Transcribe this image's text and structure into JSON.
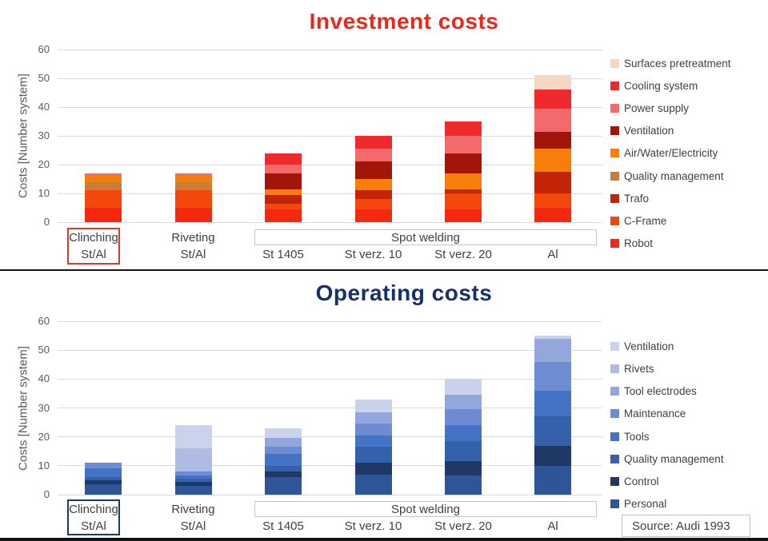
{
  "source": {
    "label": "Source: Audi 1993"
  },
  "chart_data": [
    {
      "type": "bar",
      "stacked": true,
      "title": "Investment costs",
      "title_color": "#ED2713",
      "ylabel": "Costs [Number system]",
      "ylim": [
        0,
        60
      ],
      "yticks": [
        0,
        10,
        20,
        30,
        40,
        50,
        60
      ],
      "grid": true,
      "legend_position": "right",
      "highlight_color": "#DC3A26",
      "group": {
        "label": "Spot welding",
        "from": 2,
        "to": 5
      },
      "categories": [
        {
          "name": "Clinching St/Al",
          "line1": "Clinching",
          "line2": "St/Al",
          "highlight": true
        },
        {
          "name": "Riveting St/Al",
          "line1": "Riveting",
          "line2": "St/Al",
          "highlight": false
        },
        {
          "name": "St 1405",
          "line1": "",
          "line2": "St 1405",
          "highlight": false
        },
        {
          "name": "St verz. 10",
          "line1": "",
          "line2": "St verz. 10",
          "highlight": false
        },
        {
          "name": "St verz. 20",
          "line1": "",
          "line2": "St verz. 20",
          "highlight": false
        },
        {
          "name": "Al",
          "line1": "",
          "line2": "Al",
          "highlight": false
        }
      ],
      "stack_order": "bottom-to-top",
      "series": [
        {
          "name": "Robot",
          "color": "#F4290F",
          "values": [
            5,
            5,
            4.5,
            4.5,
            4.5,
            5
          ]
        },
        {
          "name": "C-Frame",
          "color": "#F4470C",
          "values": [
            6,
            6,
            2,
            3.5,
            5.5,
            5
          ]
        },
        {
          "name": "Trafo",
          "color": "#C22405",
          "values": [
            0,
            0,
            3,
            3,
            1.5,
            7.5
          ]
        },
        {
          "name": "Quality management",
          "color": "#CB7C35",
          "values": [
            3,
            3,
            0,
            0,
            0,
            0
          ]
        },
        {
          "name": "Air/Water/Electricity",
          "color": "#F87E0B",
          "values": [
            2,
            2,
            2,
            4,
            5.5,
            8
          ]
        },
        {
          "name": "Ventilation",
          "color": "#A31508",
          "values": [
            0,
            0,
            5.5,
            6,
            7,
            6
          ]
        },
        {
          "name": "Power supply",
          "color": "#F4696C",
          "values": [
            1,
            1,
            3,
            4.5,
            6,
            8
          ]
        },
        {
          "name": "Cooling system",
          "color": "#EF2A2D",
          "values": [
            0,
            0,
            4,
            4.5,
            5,
            6.5
          ]
        },
        {
          "name": "Surfaces pretreatment",
          "color": "#F3D8C5",
          "values": [
            0,
            0,
            0,
            0,
            0,
            5
          ]
        }
      ],
      "totals": [
        17,
        17,
        24,
        30,
        35,
        51
      ]
    },
    {
      "type": "bar",
      "stacked": true,
      "title": "Operating costs",
      "title_color": "#17306B",
      "ylabel": "Costs [Number system]",
      "ylim": [
        0,
        60
      ],
      "yticks": [
        0,
        10,
        20,
        30,
        40,
        50,
        60
      ],
      "grid": true,
      "legend_position": "right",
      "highlight_color": "#1F3864",
      "group": {
        "label": "Spot welding",
        "from": 2,
        "to": 5
      },
      "categories": [
        {
          "name": "Clinching St/Al",
          "line1": "Clinching",
          "line2": "St/Al",
          "highlight": true
        },
        {
          "name": "Riveting St/Al",
          "line1": "Riveting",
          "line2": "St/Al",
          "highlight": false
        },
        {
          "name": "St 1405",
          "line1": "",
          "line2": "St 1405",
          "highlight": false
        },
        {
          "name": "St verz. 10",
          "line1": "",
          "line2": "St verz. 10",
          "highlight": false
        },
        {
          "name": "St verz. 20",
          "line1": "",
          "line2": "St verz. 20",
          "highlight": false
        },
        {
          "name": "Al",
          "line1": "",
          "line2": "Al",
          "highlight": false
        }
      ],
      "stack_order": "bottom-to-top",
      "series": [
        {
          "name": "Personal",
          "color": "#2E5597",
          "values": [
            3.5,
            3,
            6,
            7,
            6.5,
            10
          ]
        },
        {
          "name": "Control",
          "color": "#1F3864",
          "values": [
            1.5,
            1.5,
            2,
            4,
            5,
            7
          ]
        },
        {
          "name": "Quality management",
          "color": "#3561AB",
          "values": [
            1,
            1,
            2,
            5.5,
            7,
            10
          ]
        },
        {
          "name": "Tools",
          "color": "#4472C4",
          "values": [
            3,
            1,
            4,
            4,
            5.5,
            9
          ]
        },
        {
          "name": "Maintenance",
          "color": "#6E8CD2",
          "values": [
            2,
            1.5,
            2.5,
            4,
            5.5,
            10
          ]
        },
        {
          "name": "Tool electrodes",
          "color": "#92A7DC",
          "values": [
            0,
            0,
            3,
            4,
            5,
            8
          ]
        },
        {
          "name": "Rivets",
          "color": "#AFBBE2",
          "values": [
            0,
            8,
            0,
            0,
            0,
            0
          ]
        },
        {
          "name": "Ventilation",
          "color": "#CBD3EC",
          "values": [
            0,
            8,
            3.5,
            4.5,
            5.5,
            1
          ]
        }
      ],
      "totals": [
        11,
        24,
        23,
        33,
        40,
        55
      ]
    }
  ]
}
